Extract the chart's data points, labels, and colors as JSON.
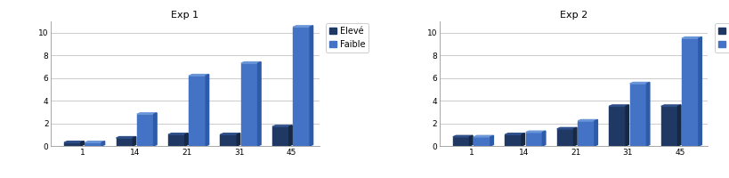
{
  "exp1": {
    "title": "Exp 1",
    "categories": [
      "1",
      "14",
      "21",
      "31",
      "45"
    ],
    "eleve": [
      0.3,
      0.7,
      1.0,
      1.0,
      1.7
    ],
    "faible": [
      0.3,
      2.8,
      6.2,
      7.3,
      10.5
    ],
    "ylim": [
      0,
      11
    ],
    "yticks": [
      0,
      2,
      4,
      6,
      8,
      10
    ]
  },
  "exp2": {
    "title": "Exp 2",
    "categories": [
      "1",
      "14",
      "21",
      "31",
      "45"
    ],
    "eleve": [
      0.8,
      1.0,
      1.5,
      3.5,
      3.5
    ],
    "faible": [
      0.8,
      1.2,
      2.2,
      5.5,
      9.5
    ],
    "ylim": [
      0,
      11
    ],
    "yticks": [
      0,
      2,
      4,
      6,
      8,
      10
    ]
  },
  "color_eleve": "#1f3864",
  "color_eleve_top": "#2e4f8a",
  "color_eleve_side": "#152844",
  "color_faible": "#4472c4",
  "color_faible_top": "#6a96d8",
  "color_faible_side": "#2e5aaa",
  "legend_labels": [
    "Elevé",
    "Faible"
  ],
  "bar_width": 0.32,
  "background_color": "#ffffff",
  "plot_bg_color": "#ffffff",
  "grid_color": "#cccccc",
  "title_fontsize": 8,
  "tick_fontsize": 6.5,
  "legend_fontsize": 7
}
